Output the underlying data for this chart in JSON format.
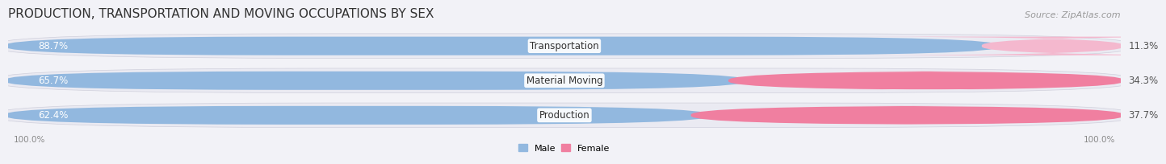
{
  "title": "PRODUCTION, TRANSPORTATION AND MOVING OCCUPATIONS BY SEX",
  "source": "Source: ZipAtlas.com",
  "categories": [
    "Transportation",
    "Material Moving",
    "Production"
  ],
  "male_values": [
    88.7,
    65.7,
    62.4
  ],
  "female_values": [
    11.3,
    34.3,
    37.7
  ],
  "male_color": "#92b8df",
  "female_color": "#f07fa0",
  "female_color_transport": "#f4b8ce",
  "bg_bar_color": "#e8e8ef",
  "bg_outer_color": "#f0f0f6",
  "title_fontsize": 11,
  "source_fontsize": 8,
  "bar_label_fontsize": 8.5,
  "cat_label_fontsize": 8.5,
  "left_label": "100.0%",
  "right_label": "100.0%",
  "legend_male": "Male",
  "legend_female": "Female"
}
